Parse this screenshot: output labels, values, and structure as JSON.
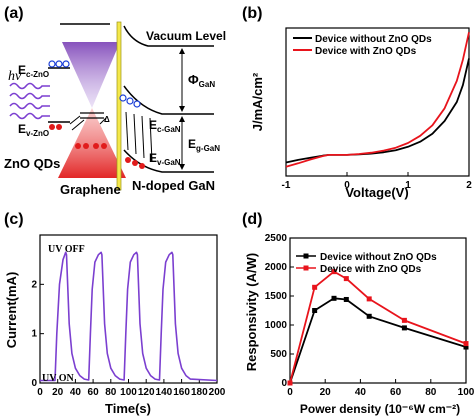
{
  "panels": {
    "a": {
      "label": "(a)",
      "hv": "hν",
      "vacuum_level": "Vacuum Level",
      "phi": "Φ",
      "phi_sub": "GaN",
      "ec_zno": "E",
      "ec_zno_sub": "c-ZnO",
      "ev_zno": "E",
      "ev_zno_sub": "v-ZnO",
      "ec_gan": "E",
      "ec_gan_sub": "c-GaN",
      "ev_gan": "E",
      "ev_gan_sub": "v-GaN",
      "eg_gan": "E",
      "eg_gan_sub": "g-GaN",
      "delta": "Δ",
      "zno_qds": "ZnO QDs",
      "graphene": "Graphene",
      "ndoped_gan": "N-doped GaN"
    },
    "b": {
      "label": "(b)",
      "ylabel": "J/mA/cm²",
      "xlabel": "Voltage(V)",
      "legend_1": "Device without ZnO QDs",
      "legend_2": "Device with ZnO QDs"
    },
    "c": {
      "label": "(c)",
      "ylabel": "Current(mA)",
      "xlabel": "Time(s)",
      "uv_off": "UV OFF",
      "uv_on": "UV ON"
    },
    "d": {
      "label": "(d)",
      "ylabel": "Responsivity (A/W)",
      "xlabel": "Power density (10⁻⁶W cm⁻²)",
      "legend_1": "Device without ZnO QDs",
      "legend_2": "Device with ZnO QDs"
    }
  },
  "chart_data": [
    {
      "type": "line",
      "panel": "b",
      "xlabel": "Voltage(V)",
      "ylabel": "J/mA/cm²",
      "xlim": [
        -1,
        2
      ],
      "ylim": [
        -50,
        300
      ],
      "xticks": [
        -1,
        0,
        1,
        2
      ],
      "yticks": [
        0,
        50,
        100,
        150,
        200,
        250
      ],
      "legend": "top-right",
      "series": [
        {
          "name": "Device without ZnO QDs",
          "color": "#000000",
          "x": [
            -1,
            -0.8,
            -0.6,
            -0.4,
            -0.3,
            -0.2,
            0,
            0.2,
            0.4,
            0.6,
            0.8,
            1.0,
            1.2,
            1.4,
            1.6,
            1.8,
            1.9,
            2.0
          ],
          "y": [
            -18,
            -12,
            -7,
            -2,
            0,
            0,
            0,
            1,
            3,
            6,
            11,
            19,
            31,
            50,
            80,
            125,
            165,
            228
          ]
        },
        {
          "name": "Device with ZnO QDs",
          "color": "#e8141c",
          "x": [
            -1,
            -0.8,
            -0.6,
            -0.4,
            -0.3,
            -0.2,
            0,
            0.2,
            0.4,
            0.6,
            0.8,
            1.0,
            1.2,
            1.4,
            1.6,
            1.8,
            1.9,
            2.0
          ],
          "y": [
            -28,
            -20,
            -11,
            -3,
            0,
            0,
            0,
            2,
            5,
            10,
            17,
            28,
            45,
            70,
            110,
            175,
            225,
            290
          ]
        }
      ]
    },
    {
      "type": "line",
      "panel": "c",
      "xlabel": "Time(s)",
      "ylabel": "Current(mA)",
      "xlim": [
        0,
        200
      ],
      "ylim": [
        0,
        3
      ],
      "xticks": [
        0,
        20,
        40,
        60,
        80,
        100,
        120,
        140,
        160,
        180,
        200
      ],
      "yticks": [
        0,
        1,
        2
      ],
      "series": [
        {
          "name": "",
          "color": "#7b3fd0",
          "x": [
            0,
            17,
            19,
            22,
            26,
            29,
            30,
            33,
            36,
            40,
            45,
            50,
            55,
            57,
            59,
            62,
            66,
            69,
            70,
            73,
            76,
            80,
            85,
            90,
            95,
            97,
            99,
            102,
            106,
            109,
            110,
            113,
            116,
            120,
            125,
            130,
            135,
            137,
            139,
            142,
            146,
            149,
            150,
            153,
            156,
            160,
            165,
            170,
            200
          ],
          "y": [
            0.05,
            0.05,
            1.0,
            2.0,
            2.5,
            2.65,
            2.6,
            1.2,
            0.6,
            0.3,
            0.15,
            0.08,
            0.06,
            1.0,
            1.9,
            2.45,
            2.6,
            2.65,
            2.6,
            1.2,
            0.6,
            0.3,
            0.15,
            0.08,
            0.06,
            1.0,
            1.9,
            2.45,
            2.6,
            2.65,
            2.6,
            1.2,
            0.6,
            0.3,
            0.15,
            0.08,
            0.06,
            1.0,
            1.9,
            2.45,
            2.6,
            2.65,
            2.6,
            1.2,
            0.6,
            0.3,
            0.15,
            0.08,
            0.05
          ]
        }
      ]
    },
    {
      "type": "line",
      "panel": "d",
      "xlabel": "Power density (10⁻⁶W cm⁻²)",
      "ylabel": "Responsivity (A/W)",
      "xlim": [
        0,
        100
      ],
      "ylim": [
        0,
        2500
      ],
      "xticks": [
        0,
        20,
        40,
        60,
        80,
        100
      ],
      "yticks": [
        0,
        500,
        1000,
        1500,
        2000,
        2500
      ],
      "legend": "top-right",
      "series": [
        {
          "name": "Device without ZnO QDs",
          "color": "#000000",
          "marker": "square",
          "x": [
            0,
            14,
            25,
            32,
            45,
            65,
            100
          ],
          "y": [
            0,
            1250,
            1460,
            1440,
            1150,
            950,
            620
          ]
        },
        {
          "name": "Device with ZnO QDs",
          "color": "#e8141c",
          "marker": "square",
          "x": [
            0,
            14,
            25,
            32,
            45,
            65,
            100
          ],
          "y": [
            0,
            1650,
            1920,
            1800,
            1450,
            1080,
            680
          ]
        }
      ]
    }
  ]
}
